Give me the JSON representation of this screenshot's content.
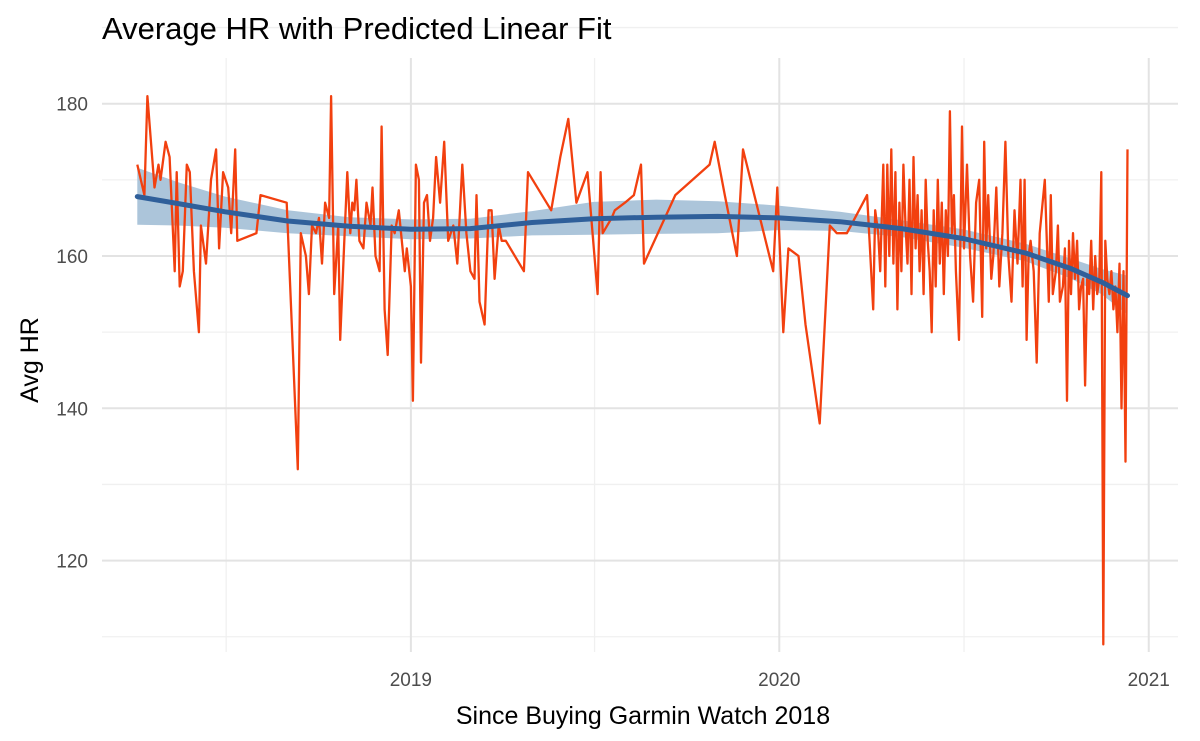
{
  "chart_data": {
    "type": "line",
    "title": "Average HR with Predicted Linear Fit",
    "xlabel": "Since Buying Garmin Watch 2018",
    "ylabel": "Avg HR",
    "xlim": [
      "2018-03-01",
      "2021-01-30"
    ],
    "ylim": [
      108,
      186
    ],
    "x_ticks": [
      "2019",
      "2020",
      "2021"
    ],
    "y_ticks": [
      120,
      140,
      160,
      180
    ],
    "grid": true,
    "colors": {
      "observed": "#f2400f",
      "fit": "#2f5f9a",
      "band": "#a8c2d8"
    },
    "series": [
      {
        "kind": "observed",
        "points": [
          [
            "2018-04-05",
            172
          ],
          [
            "2018-04-12",
            168
          ],
          [
            "2018-04-15",
            181
          ],
          [
            "2018-04-22",
            169
          ],
          [
            "2018-04-26",
            172
          ],
          [
            "2018-04-28",
            170
          ],
          [
            "2018-05-03",
            175
          ],
          [
            "2018-05-07",
            173
          ],
          [
            "2018-05-12",
            158
          ],
          [
            "2018-05-14",
            171
          ],
          [
            "2018-05-17",
            156
          ],
          [
            "2018-05-20",
            158
          ],
          [
            "2018-05-24",
            172
          ],
          [
            "2018-05-27",
            171
          ],
          [
            "2018-05-31",
            158
          ],
          [
            "2018-06-05",
            150
          ],
          [
            "2018-06-07",
            164
          ],
          [
            "2018-06-12",
            159
          ],
          [
            "2018-06-17",
            170
          ],
          [
            "2018-06-22",
            174
          ],
          [
            "2018-06-25",
            161
          ],
          [
            "2018-06-29",
            171
          ],
          [
            "2018-07-04",
            169
          ],
          [
            "2018-07-07",
            163
          ],
          [
            "2018-07-11",
            174
          ],
          [
            "2018-07-13",
            162
          ],
          [
            "2018-08-01",
            163
          ],
          [
            "2018-08-05",
            168
          ],
          [
            "2018-08-31",
            167
          ],
          [
            "2018-09-11",
            132
          ],
          [
            "2018-09-14",
            163
          ],
          [
            "2018-09-19",
            160
          ],
          [
            "2018-09-22",
            155
          ],
          [
            "2018-09-25",
            164
          ],
          [
            "2018-09-29",
            163
          ],
          [
            "2018-10-02",
            165
          ],
          [
            "2018-10-05",
            159
          ],
          [
            "2018-10-08",
            167
          ],
          [
            "2018-10-12",
            165
          ],
          [
            "2018-10-14",
            181
          ],
          [
            "2018-10-17",
            155
          ],
          [
            "2018-10-21",
            164
          ],
          [
            "2018-10-23",
            149
          ],
          [
            "2018-10-27",
            162
          ],
          [
            "2018-10-30",
            171
          ],
          [
            "2018-11-02",
            163
          ],
          [
            "2018-11-04",
            167
          ],
          [
            "2018-11-06",
            166
          ],
          [
            "2018-11-08",
            170
          ],
          [
            "2018-11-11",
            162
          ],
          [
            "2018-11-15",
            161
          ],
          [
            "2018-11-18",
            167
          ],
          [
            "2018-11-22",
            164
          ],
          [
            "2018-11-24",
            169
          ],
          [
            "2018-11-27",
            160
          ],
          [
            "2018-12-01",
            158
          ],
          [
            "2018-12-03",
            177
          ],
          [
            "2018-12-06",
            153
          ],
          [
            "2018-12-09",
            147
          ],
          [
            "2018-12-13",
            164
          ],
          [
            "2018-12-16",
            163
          ],
          [
            "2018-12-20",
            166
          ],
          [
            "2018-12-26",
            158
          ],
          [
            "2018-12-28",
            161
          ],
          [
            "2019-01-01",
            156
          ],
          [
            "2019-01-03",
            141
          ],
          [
            "2019-01-06",
            172
          ],
          [
            "2019-01-09",
            170
          ],
          [
            "2019-01-11",
            146
          ],
          [
            "2019-01-14",
            167
          ],
          [
            "2019-01-17",
            168
          ],
          [
            "2019-01-20",
            162
          ],
          [
            "2019-01-23",
            165
          ],
          [
            "2019-01-26",
            173
          ],
          [
            "2019-01-30",
            167
          ],
          [
            "2019-02-03",
            175
          ],
          [
            "2019-02-07",
            162
          ],
          [
            "2019-02-12",
            164
          ],
          [
            "2019-02-16",
            159
          ],
          [
            "2019-02-21",
            172
          ],
          [
            "2019-02-25",
            163
          ],
          [
            "2019-03-01",
            158
          ],
          [
            "2019-03-05",
            157
          ],
          [
            "2019-03-07",
            168
          ],
          [
            "2019-03-10",
            154
          ],
          [
            "2019-03-15",
            151
          ],
          [
            "2019-03-19",
            166
          ],
          [
            "2019-03-22",
            166
          ],
          [
            "2019-03-25",
            157
          ],
          [
            "2019-03-29",
            164
          ],
          [
            "2019-04-01",
            162
          ],
          [
            "2019-04-05",
            162
          ],
          [
            "2019-04-23",
            158
          ],
          [
            "2019-04-27",
            171
          ],
          [
            "2019-05-20",
            166
          ],
          [
            "2019-05-29",
            173
          ],
          [
            "2019-06-06",
            178
          ],
          [
            "2019-06-14",
            167
          ],
          [
            "2019-06-25",
            171
          ],
          [
            "2019-07-05",
            155
          ],
          [
            "2019-07-08",
            171
          ],
          [
            "2019-07-10",
            163
          ],
          [
            "2019-07-19",
            165
          ],
          [
            "2019-07-22",
            166
          ],
          [
            "2019-08-01",
            167
          ],
          [
            "2019-08-10",
            168
          ],
          [
            "2019-08-17",
            172
          ],
          [
            "2019-08-20",
            159
          ],
          [
            "2019-09-20",
            168
          ],
          [
            "2019-10-24",
            172
          ],
          [
            "2019-10-29",
            175
          ],
          [
            "2019-11-08",
            168
          ],
          [
            "2019-11-20",
            160
          ],
          [
            "2019-11-26",
            174
          ],
          [
            "2019-12-26",
            158
          ],
          [
            "2019-12-30",
            169
          ],
          [
            "2020-01-05",
            150
          ],
          [
            "2020-01-10",
            161
          ],
          [
            "2020-01-20",
            160
          ],
          [
            "2020-01-27",
            151
          ],
          [
            "2020-02-10",
            138
          ],
          [
            "2020-02-20",
            164
          ],
          [
            "2020-02-27",
            163
          ],
          [
            "2020-03-08",
            163
          ],
          [
            "2020-03-28",
            168
          ],
          [
            "2020-04-03",
            153
          ],
          [
            "2020-04-05",
            166
          ],
          [
            "2020-04-08",
            163
          ],
          [
            "2020-04-10",
            158
          ],
          [
            "2020-04-13",
            172
          ],
          [
            "2020-04-15",
            156
          ],
          [
            "2020-04-17",
            172
          ],
          [
            "2020-04-19",
            160
          ],
          [
            "2020-04-21",
            174
          ],
          [
            "2020-04-23",
            159
          ],
          [
            "2020-04-25",
            171
          ],
          [
            "2020-04-27",
            153
          ],
          [
            "2020-04-29",
            167
          ],
          [
            "2020-05-01",
            158
          ],
          [
            "2020-05-03",
            172
          ],
          [
            "2020-05-05",
            164
          ],
          [
            "2020-05-07",
            159
          ],
          [
            "2020-05-09",
            170
          ],
          [
            "2020-05-11",
            155
          ],
          [
            "2020-05-13",
            173
          ],
          [
            "2020-05-15",
            161
          ],
          [
            "2020-05-17",
            168
          ],
          [
            "2020-05-19",
            158
          ],
          [
            "2020-05-21",
            166
          ],
          [
            "2020-05-23",
            155
          ],
          [
            "2020-05-25",
            170
          ],
          [
            "2020-05-27",
            162
          ],
          [
            "2020-05-29",
            158
          ],
          [
            "2020-05-31",
            150
          ],
          [
            "2020-06-02",
            166
          ],
          [
            "2020-06-04",
            156
          ],
          [
            "2020-06-06",
            170
          ],
          [
            "2020-06-08",
            159
          ],
          [
            "2020-06-10",
            167
          ],
          [
            "2020-06-12",
            155
          ],
          [
            "2020-06-14",
            166
          ],
          [
            "2020-06-16",
            160
          ],
          [
            "2020-06-18",
            179
          ],
          [
            "2020-06-20",
            163
          ],
          [
            "2020-06-22",
            168
          ],
          [
            "2020-06-24",
            158
          ],
          [
            "2020-06-27",
            149
          ],
          [
            "2020-06-30",
            177
          ],
          [
            "2020-07-02",
            161
          ],
          [
            "2020-07-05",
            172
          ],
          [
            "2020-07-08",
            160
          ],
          [
            "2020-07-11",
            154
          ],
          [
            "2020-07-14",
            167
          ],
          [
            "2020-07-17",
            170
          ],
          [
            "2020-07-20",
            152
          ],
          [
            "2020-07-22",
            175
          ],
          [
            "2020-07-24",
            161
          ],
          [
            "2020-07-26",
            168
          ],
          [
            "2020-07-29",
            157
          ],
          [
            "2020-07-31",
            160
          ],
          [
            "2020-08-03",
            169
          ],
          [
            "2020-08-06",
            156
          ],
          [
            "2020-08-09",
            163
          ],
          [
            "2020-08-12",
            175
          ],
          [
            "2020-08-15",
            160
          ],
          [
            "2020-08-18",
            154
          ],
          [
            "2020-08-21",
            166
          ],
          [
            "2020-08-24",
            159
          ],
          [
            "2020-08-27",
            170
          ],
          [
            "2020-08-29",
            156
          ],
          [
            "2020-08-31",
            170
          ],
          [
            "2020-09-02",
            149
          ],
          [
            "2020-09-04",
            160
          ],
          [
            "2020-09-06",
            162
          ],
          [
            "2020-09-09",
            158
          ],
          [
            "2020-09-12",
            146
          ],
          [
            "2020-09-15",
            163
          ],
          [
            "2020-09-20",
            170
          ],
          [
            "2020-09-22",
            162
          ],
          [
            "2020-09-24",
            154
          ],
          [
            "2020-09-26",
            168
          ],
          [
            "2020-09-28",
            155
          ],
          [
            "2020-10-01",
            158
          ],
          [
            "2020-10-03",
            164
          ],
          [
            "2020-10-05",
            154
          ],
          [
            "2020-10-08",
            156
          ],
          [
            "2020-10-10",
            161
          ],
          [
            "2020-10-12",
            141
          ],
          [
            "2020-10-14",
            162
          ],
          [
            "2020-10-16",
            155
          ],
          [
            "2020-10-18",
            163
          ],
          [
            "2020-10-20",
            157
          ],
          [
            "2020-10-22",
            162
          ],
          [
            "2020-10-24",
            153
          ],
          [
            "2020-10-26",
            156
          ],
          [
            "2020-10-28",
            157
          ],
          [
            "2020-10-30",
            143
          ],
          [
            "2020-11-01",
            157
          ],
          [
            "2020-11-03",
            155
          ],
          [
            "2020-11-05",
            162
          ],
          [
            "2020-11-07",
            153
          ],
          [
            "2020-11-09",
            160
          ],
          [
            "2020-11-11",
            155
          ],
          [
            "2020-11-13",
            157
          ],
          [
            "2020-11-15",
            171
          ],
          [
            "2020-11-17",
            109
          ],
          [
            "2020-11-19",
            162
          ],
          [
            "2020-11-21",
            157
          ],
          [
            "2020-11-23",
            155
          ],
          [
            "2020-11-25",
            158
          ],
          [
            "2020-11-27",
            153
          ],
          [
            "2020-11-29",
            156
          ],
          [
            "2020-12-01",
            150
          ],
          [
            "2020-12-03",
            159
          ],
          [
            "2020-12-05",
            140
          ],
          [
            "2020-12-07",
            158
          ],
          [
            "2020-12-09",
            133
          ],
          [
            "2020-12-11",
            174
          ]
        ]
      },
      {
        "kind": "fit",
        "points": [
          [
            "2018-04-05",
            167.8
          ],
          [
            "2018-05-15",
            166.9
          ],
          [
            "2018-07-01",
            165.8
          ],
          [
            "2018-09-01",
            164.6
          ],
          [
            "2018-11-01",
            163.9
          ],
          [
            "2019-01-01",
            163.5
          ],
          [
            "2019-03-01",
            163.6
          ],
          [
            "2019-05-01",
            164.4
          ],
          [
            "2019-07-01",
            164.9
          ],
          [
            "2019-09-01",
            165.1
          ],
          [
            "2019-11-01",
            165.2
          ],
          [
            "2020-01-01",
            165.0
          ],
          [
            "2020-03-01",
            164.5
          ],
          [
            "2020-05-01",
            163.6
          ],
          [
            "2020-07-01",
            162.3
          ],
          [
            "2020-09-01",
            160.4
          ],
          [
            "2020-10-15",
            158.4
          ],
          [
            "2020-11-15",
            156.6
          ],
          [
            "2020-12-11",
            154.8
          ]
        ]
      },
      {
        "kind": "band",
        "points": [
          [
            "2018-04-05",
            164.1,
            171.6
          ],
          [
            "2018-05-15",
            164.0,
            169.7
          ],
          [
            "2018-07-01",
            163.7,
            167.8
          ],
          [
            "2018-09-01",
            163.0,
            166.0
          ],
          [
            "2018-11-01",
            162.6,
            165.1
          ],
          [
            "2019-01-01",
            162.2,
            164.8
          ],
          [
            "2019-03-01",
            162.3,
            164.9
          ],
          [
            "2019-05-01",
            162.7,
            165.9
          ],
          [
            "2019-07-01",
            162.8,
            167.1
          ],
          [
            "2019-09-01",
            162.9,
            167.4
          ],
          [
            "2019-11-01",
            163.0,
            167.2
          ],
          [
            "2020-01-01",
            163.4,
            166.6
          ],
          [
            "2020-03-01",
            163.3,
            165.8
          ],
          [
            "2020-05-01",
            162.5,
            164.7
          ],
          [
            "2020-07-01",
            161.1,
            163.5
          ],
          [
            "2020-09-01",
            159.3,
            161.6
          ],
          [
            "2020-10-15",
            157.1,
            159.7
          ],
          [
            "2020-11-15",
            155.0,
            158.3
          ],
          [
            "2020-12-11",
            152.3,
            157.4
          ]
        ]
      }
    ]
  }
}
